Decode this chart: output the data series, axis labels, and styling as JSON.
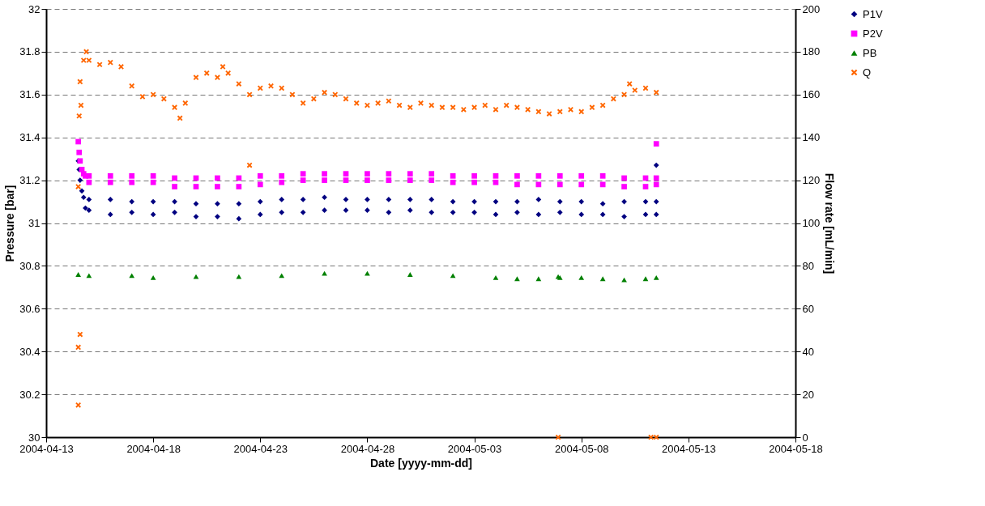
{
  "chart_data": {
    "type": "scatter",
    "xlabel": "Date [yyyy-mm-dd]",
    "ylabel": "Pressure [bar]",
    "y2label": "Flow rate [mL/min]",
    "xlim": [
      "2004-04-13",
      "2004-05-18"
    ],
    "xticks": [
      "2004-04-13",
      "2004-04-18",
      "2004-04-23",
      "2004-04-28",
      "2004-05-03",
      "2004-05-08",
      "2004-05-13",
      "2004-05-18"
    ],
    "ylim": [
      30,
      32
    ],
    "yticks": [
      30,
      30.2,
      30.4,
      30.6,
      30.8,
      31,
      31.2,
      31.4,
      31.6,
      31.8,
      32
    ],
    "y2lim": [
      0,
      200
    ],
    "y2ticks": [
      0,
      20,
      40,
      60,
      80,
      100,
      120,
      140,
      160,
      180,
      200
    ],
    "grid": "y",
    "legend": "right",
    "series": [
      {
        "name": "P1V",
        "color": "#000080",
        "marker": "diamond",
        "x": [
          "2004-04-14T12:00",
          "2004-04-14T13:00",
          "2004-04-14T14:00",
          "2004-04-14T16:00",
          "2004-04-14T18:00",
          "2004-04-14T20:00",
          "2004-04-15",
          "2004-04-15",
          "2004-04-16",
          "2004-04-16",
          "2004-04-17",
          "2004-04-17",
          "2004-04-18",
          "2004-04-18",
          "2004-04-19",
          "2004-04-19",
          "2004-04-20",
          "2004-04-20",
          "2004-04-21",
          "2004-04-21",
          "2004-04-22",
          "2004-04-22",
          "2004-04-23",
          "2004-04-23",
          "2004-04-24",
          "2004-04-24",
          "2004-04-25",
          "2004-04-25",
          "2004-04-26",
          "2004-04-26",
          "2004-04-27",
          "2004-04-27",
          "2004-04-28",
          "2004-04-28",
          "2004-04-29",
          "2004-04-29",
          "2004-04-30",
          "2004-04-30",
          "2004-05-01",
          "2004-05-01",
          "2004-05-02",
          "2004-05-02",
          "2004-05-03",
          "2004-05-03",
          "2004-05-04",
          "2004-05-04",
          "2004-05-05",
          "2004-05-05",
          "2004-05-06",
          "2004-05-06",
          "2004-05-07",
          "2004-05-07",
          "2004-05-08",
          "2004-05-08",
          "2004-05-09",
          "2004-05-09",
          "2004-05-10",
          "2004-05-10",
          "2004-05-11",
          "2004-05-11",
          "2004-05-11T12:00",
          "2004-05-11T12:00",
          "2004-05-11T12:00"
        ],
        "values": [
          31.29,
          31.25,
          31.2,
          31.15,
          31.12,
          31.07,
          31.11,
          31.06,
          31.11,
          31.04,
          31.1,
          31.05,
          31.1,
          31.04,
          31.1,
          31.05,
          31.09,
          31.03,
          31.09,
          31.03,
          31.09,
          31.02,
          31.1,
          31.04,
          31.11,
          31.05,
          31.11,
          31.05,
          31.12,
          31.06,
          31.11,
          31.06,
          31.11,
          31.06,
          31.11,
          31.05,
          31.11,
          31.06,
          31.11,
          31.05,
          31.1,
          31.05,
          31.1,
          31.05,
          31.1,
          31.04,
          31.1,
          31.05,
          31.11,
          31.04,
          31.1,
          31.05,
          31.1,
          31.04,
          31.09,
          31.04,
          31.1,
          31.03,
          31.1,
          31.04,
          31.27,
          31.1,
          31.04
        ]
      },
      {
        "name": "P2V",
        "color": "#ff00ff",
        "marker": "square",
        "x": [
          "2004-04-14T12:00",
          "2004-04-14T13:00",
          "2004-04-14T14:00",
          "2004-04-14T16:00",
          "2004-04-14T18:00",
          "2004-04-14T20:00",
          "2004-04-15",
          "2004-04-15",
          "2004-04-16",
          "2004-04-16",
          "2004-04-17",
          "2004-04-17",
          "2004-04-18",
          "2004-04-18",
          "2004-04-19",
          "2004-04-19",
          "2004-04-20",
          "2004-04-20",
          "2004-04-21",
          "2004-04-21",
          "2004-04-22",
          "2004-04-22",
          "2004-04-23",
          "2004-04-23",
          "2004-04-24",
          "2004-04-24",
          "2004-04-25",
          "2004-04-25",
          "2004-04-26",
          "2004-04-26",
          "2004-04-27",
          "2004-04-27",
          "2004-04-28",
          "2004-04-28",
          "2004-04-29",
          "2004-04-29",
          "2004-04-30",
          "2004-04-30",
          "2004-05-01",
          "2004-05-01",
          "2004-05-02",
          "2004-05-02",
          "2004-05-03",
          "2004-05-03",
          "2004-05-04",
          "2004-05-04",
          "2004-05-05",
          "2004-05-05",
          "2004-05-06",
          "2004-05-06",
          "2004-05-07",
          "2004-05-07",
          "2004-05-08",
          "2004-05-08",
          "2004-05-09",
          "2004-05-09",
          "2004-05-10",
          "2004-05-10",
          "2004-05-11",
          "2004-05-11",
          "2004-05-11T12:00",
          "2004-05-11T12:00",
          "2004-05-11T12:00"
        ],
        "values": [
          31.38,
          31.33,
          31.29,
          31.25,
          31.23,
          31.22,
          31.22,
          31.19,
          31.22,
          31.19,
          31.22,
          31.19,
          31.22,
          31.19,
          31.21,
          31.17,
          31.21,
          31.17,
          31.21,
          31.17,
          31.21,
          31.17,
          31.22,
          31.18,
          31.22,
          31.19,
          31.23,
          31.2,
          31.23,
          31.2,
          31.23,
          31.2,
          31.23,
          31.2,
          31.23,
          31.2,
          31.23,
          31.2,
          31.23,
          31.2,
          31.22,
          31.19,
          31.22,
          31.19,
          31.22,
          31.19,
          31.22,
          31.18,
          31.22,
          31.18,
          31.22,
          31.18,
          31.22,
          31.18,
          31.22,
          31.18,
          31.21,
          31.17,
          31.21,
          31.17,
          31.37,
          31.21,
          31.18
        ]
      },
      {
        "name": "PB",
        "color": "#008000",
        "marker": "triangle",
        "x": [
          "2004-04-14T12:00",
          "2004-04-15",
          "2004-04-17",
          "2004-04-18",
          "2004-04-20",
          "2004-04-22",
          "2004-04-24",
          "2004-04-26",
          "2004-04-28",
          "2004-04-30",
          "2004-05-02",
          "2004-05-04",
          "2004-05-05",
          "2004-05-06",
          "2004-05-06T22:00",
          "2004-05-07",
          "2004-05-08",
          "2004-05-09",
          "2004-05-10",
          "2004-05-11",
          "2004-05-11T12:00"
        ],
        "values": [
          30.76,
          30.755,
          30.755,
          30.745,
          30.75,
          30.75,
          30.755,
          30.765,
          30.765,
          30.76,
          30.755,
          30.745,
          30.74,
          30.74,
          30.75,
          30.745,
          30.745,
          30.74,
          30.735,
          30.74,
          30.745
        ]
      },
      {
        "name": "Q",
        "color": "#ff6600",
        "marker": "cross",
        "axis": "y2",
        "x": [
          "2004-04-14T12:00",
          "2004-04-14T12:00",
          "2004-04-14T14:00",
          "2004-04-14T12:00",
          "2004-04-14T13:00",
          "2004-04-14T14:00",
          "2004-04-14T15:00",
          "2004-04-14T18:00",
          "2004-04-14T21:00",
          "2004-04-15",
          "2004-04-15T12:00",
          "2004-04-16",
          "2004-04-16T12:00",
          "2004-04-17",
          "2004-04-17T12:00",
          "2004-04-18",
          "2004-04-18T12:00",
          "2004-04-19",
          "2004-04-19T06:00",
          "2004-04-19T12:00",
          "2004-04-20",
          "2004-04-20T12:00",
          "2004-04-21",
          "2004-04-21T06:00",
          "2004-04-21T12:00",
          "2004-04-22",
          "2004-04-22T12:00",
          "2004-04-22T12:00",
          "2004-04-23",
          "2004-04-23T12:00",
          "2004-04-24",
          "2004-04-24T12:00",
          "2004-04-25",
          "2004-04-25T12:00",
          "2004-04-26",
          "2004-04-26T12:00",
          "2004-04-27",
          "2004-04-27T12:00",
          "2004-04-28",
          "2004-04-28T12:00",
          "2004-04-29",
          "2004-04-29T12:00",
          "2004-04-30",
          "2004-04-30T12:00",
          "2004-05-01",
          "2004-05-01T12:00",
          "2004-05-02",
          "2004-05-02T12:00",
          "2004-05-03",
          "2004-05-03T12:00",
          "2004-05-04",
          "2004-05-04T12:00",
          "2004-05-05",
          "2004-05-05T12:00",
          "2004-05-06",
          "2004-05-06T12:00",
          "2004-05-06T22:00",
          "2004-05-07",
          "2004-05-07T12:00",
          "2004-05-08",
          "2004-05-08T12:00",
          "2004-05-09",
          "2004-05-09T12:00",
          "2004-05-10",
          "2004-05-10T06:00",
          "2004-05-10T12:00",
          "2004-05-11",
          "2004-05-11T06:00",
          "2004-05-11T12:00",
          "2004-05-11T12:00"
        ],
        "values": [
          15,
          42,
          48,
          117,
          150,
          166,
          155,
          176,
          180,
          176,
          174,
          175,
          173,
          164,
          159,
          160,
          158,
          154,
          149,
          156,
          168,
          170,
          168,
          173,
          170,
          165,
          160,
          127,
          163,
          164,
          163,
          160,
          156,
          158,
          161,
          160,
          158,
          156,
          155,
          156,
          157,
          155,
          154,
          156,
          155,
          154,
          154,
          153,
          154,
          155,
          153,
          155,
          154,
          153,
          152,
          151,
          0,
          152,
          153,
          152,
          154,
          155,
          158,
          160,
          165,
          162,
          163,
          0,
          161,
          0
        ]
      }
    ]
  }
}
